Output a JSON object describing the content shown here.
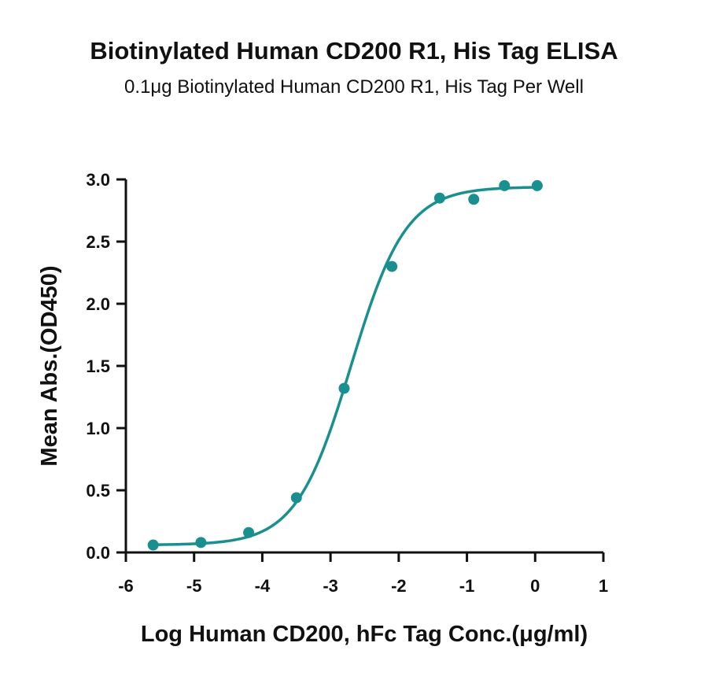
{
  "chart_data": {
    "type": "line",
    "title": "Biotinylated Human CD200 R1, His Tag ELISA",
    "subtitle": "0.1μg Biotinylated Human CD200 R1, His Tag Per Well",
    "xlabel": "Log Human CD200, hFc Tag Conc.(μg/ml)",
    "ylabel": "Mean Abs.(OD450)",
    "xlim": [
      -6,
      1
    ],
    "ylim": [
      0,
      3
    ],
    "x_ticks": [
      "-6",
      "-5",
      "-4",
      "-3",
      "-2",
      "-1",
      "0",
      "1"
    ],
    "y_ticks": [
      "0.0",
      "0.5",
      "1.0",
      "1.5",
      "2.0",
      "2.5",
      "3.0"
    ],
    "grid": false,
    "color": "#1a8f8f",
    "series": [
      {
        "points": [
          {
            "x": -5.6,
            "y": 0.06
          },
          {
            "x": -4.9,
            "y": 0.08
          },
          {
            "x": -4.2,
            "y": 0.16
          },
          {
            "x": -3.5,
            "y": 0.44
          },
          {
            "x": -2.8,
            "y": 1.32
          },
          {
            "x": -2.1,
            "y": 2.3
          },
          {
            "x": -1.4,
            "y": 2.85
          },
          {
            "x": -0.9,
            "y": 2.84
          },
          {
            "x": -0.45,
            "y": 2.95
          },
          {
            "x": 0.03,
            "y": 2.95
          }
        ],
        "fit": {
          "model": "4PL",
          "bottom": 0.06,
          "top": 2.94,
          "log_ec50": -2.7,
          "hill_slope": 1.08,
          "x_range": [
            -5.6,
            0.03
          ]
        }
      }
    ]
  }
}
